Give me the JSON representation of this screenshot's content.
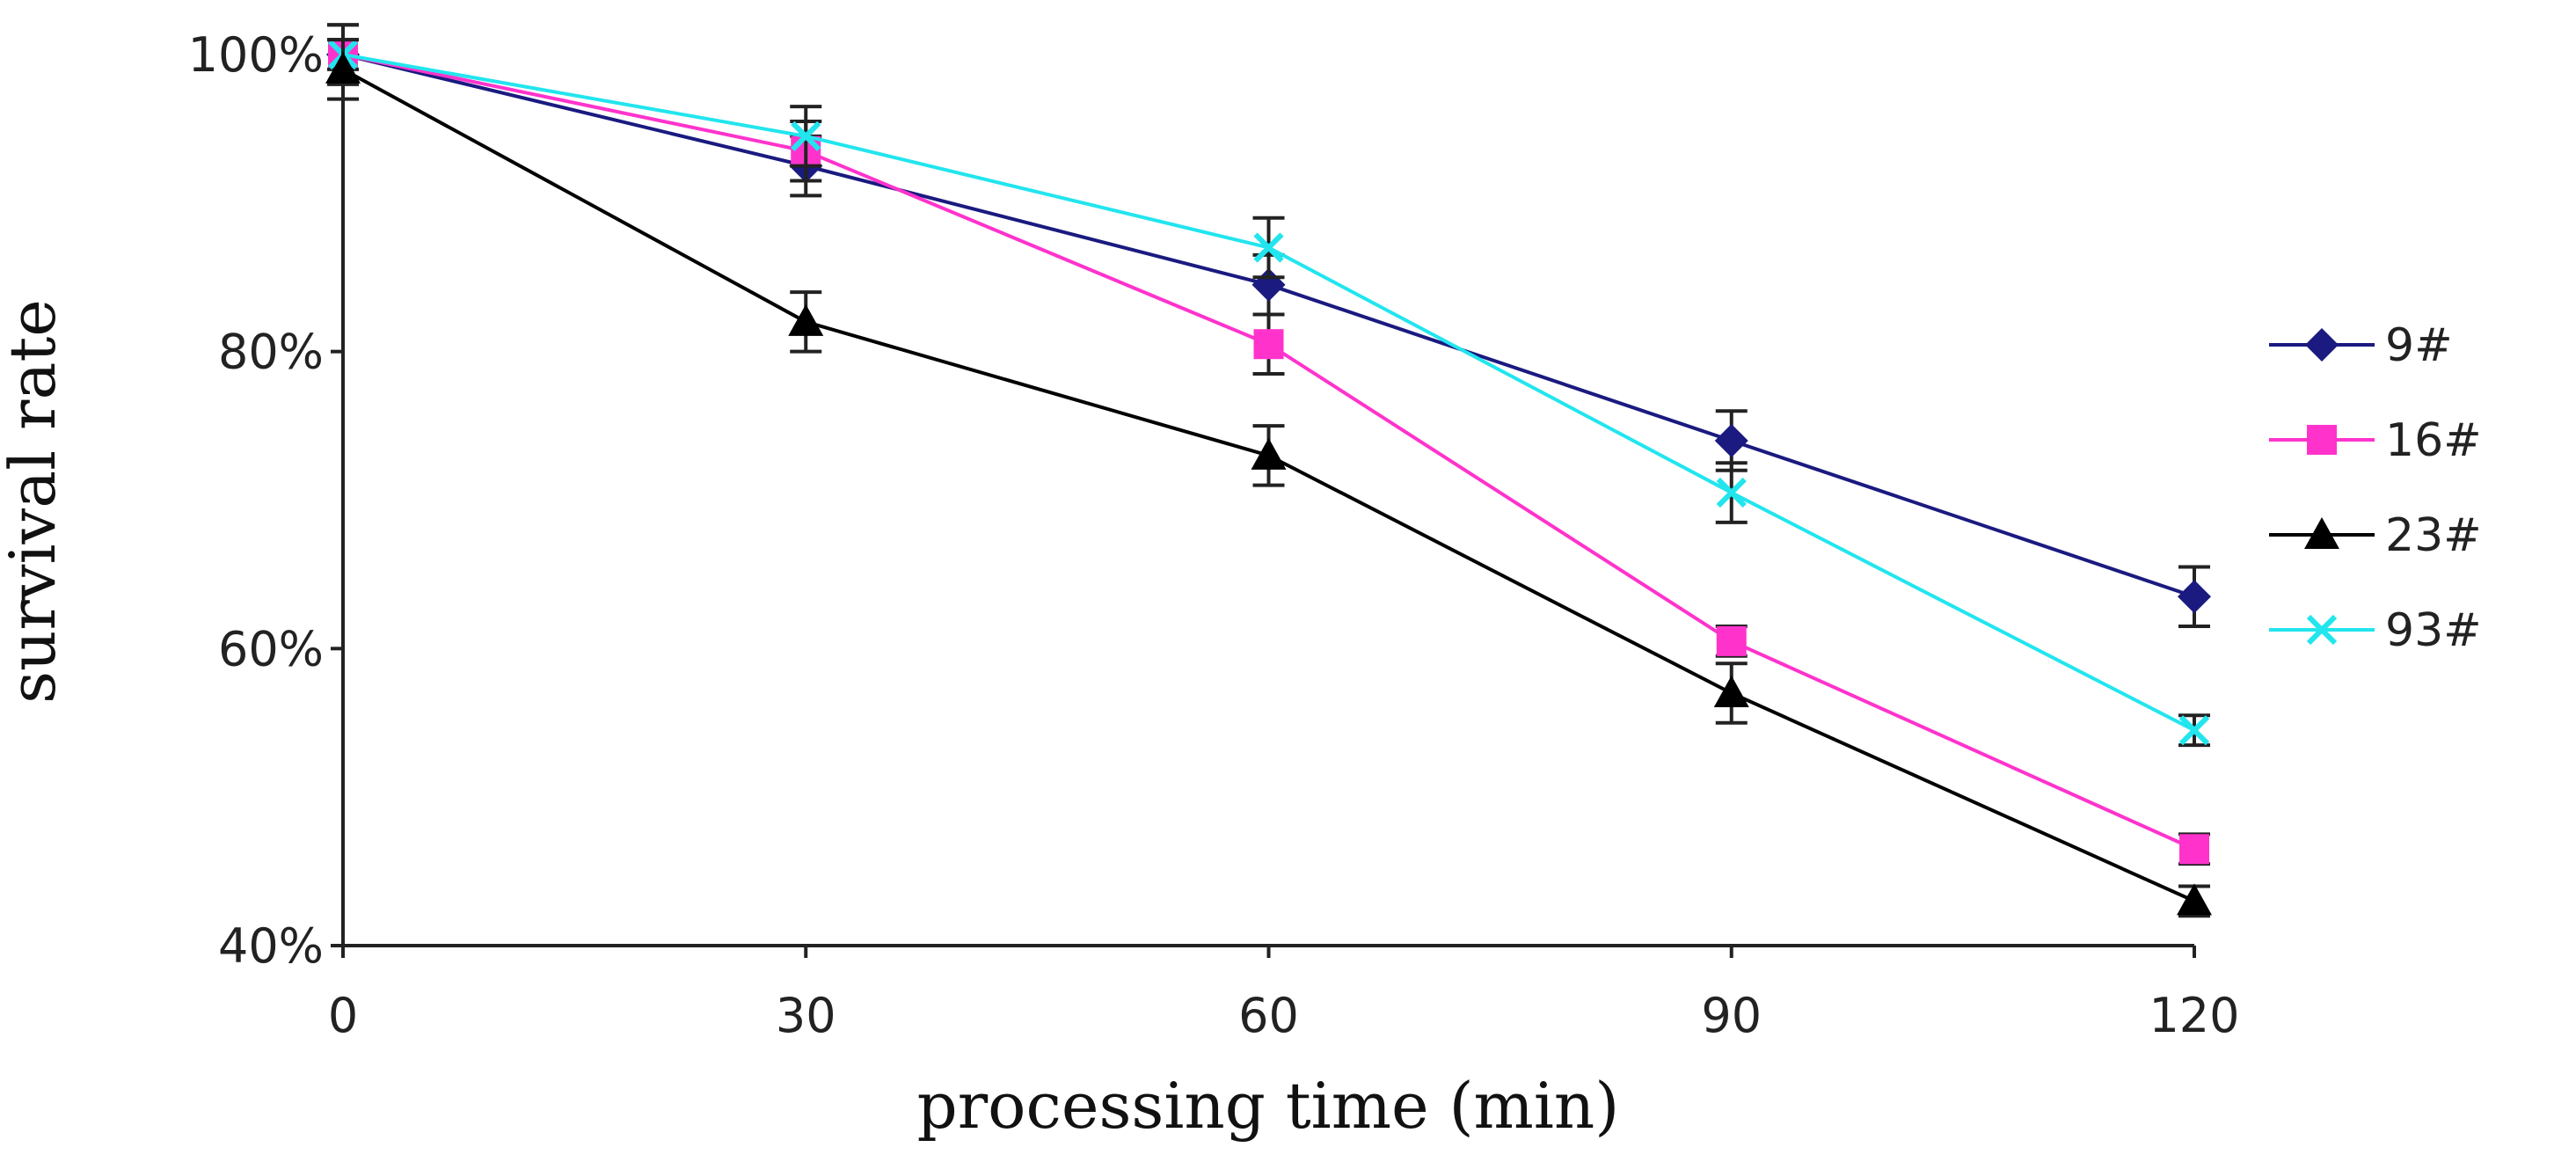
{
  "chart_data": {
    "type": "line",
    "title": "",
    "xlabel": "processing time (min)",
    "ylabel": "survival rate",
    "x": [
      0,
      30,
      60,
      90,
      120
    ],
    "x_tick_labels": [
      "0",
      "30",
      "60",
      "90",
      "120"
    ],
    "ylim": [
      40,
      100
    ],
    "y_ticks": [
      40,
      60,
      80,
      100
    ],
    "y_tick_labels": [
      "40%",
      "60%",
      "80%",
      "100%"
    ],
    "grid": false,
    "legend_position": "right",
    "series": [
      {
        "name": "9#",
        "color": "#1a1a80",
        "marker": "diamond",
        "values": [
          100,
          92.5,
          84.5,
          74,
          63.5
        ],
        "errors": [
          2,
          2,
          2,
          2,
          2
        ]
      },
      {
        "name": "16#",
        "color": "#ff33cc",
        "marker": "square",
        "values": [
          100,
          93.5,
          80.5,
          60.5,
          46.5
        ],
        "errors": [
          2,
          2,
          2,
          1,
          1
        ]
      },
      {
        "name": "23#",
        "color": "#000000",
        "marker": "triangle",
        "values": [
          99,
          82,
          73,
          57,
          43
        ],
        "errors": [
          2,
          2,
          2,
          2,
          1
        ]
      },
      {
        "name": "93#",
        "color": "#22e5ee",
        "marker": "x",
        "values": [
          100,
          94.5,
          87,
          70.5,
          54.5
        ],
        "errors": [
          1,
          2,
          2,
          2,
          1
        ]
      }
    ]
  }
}
